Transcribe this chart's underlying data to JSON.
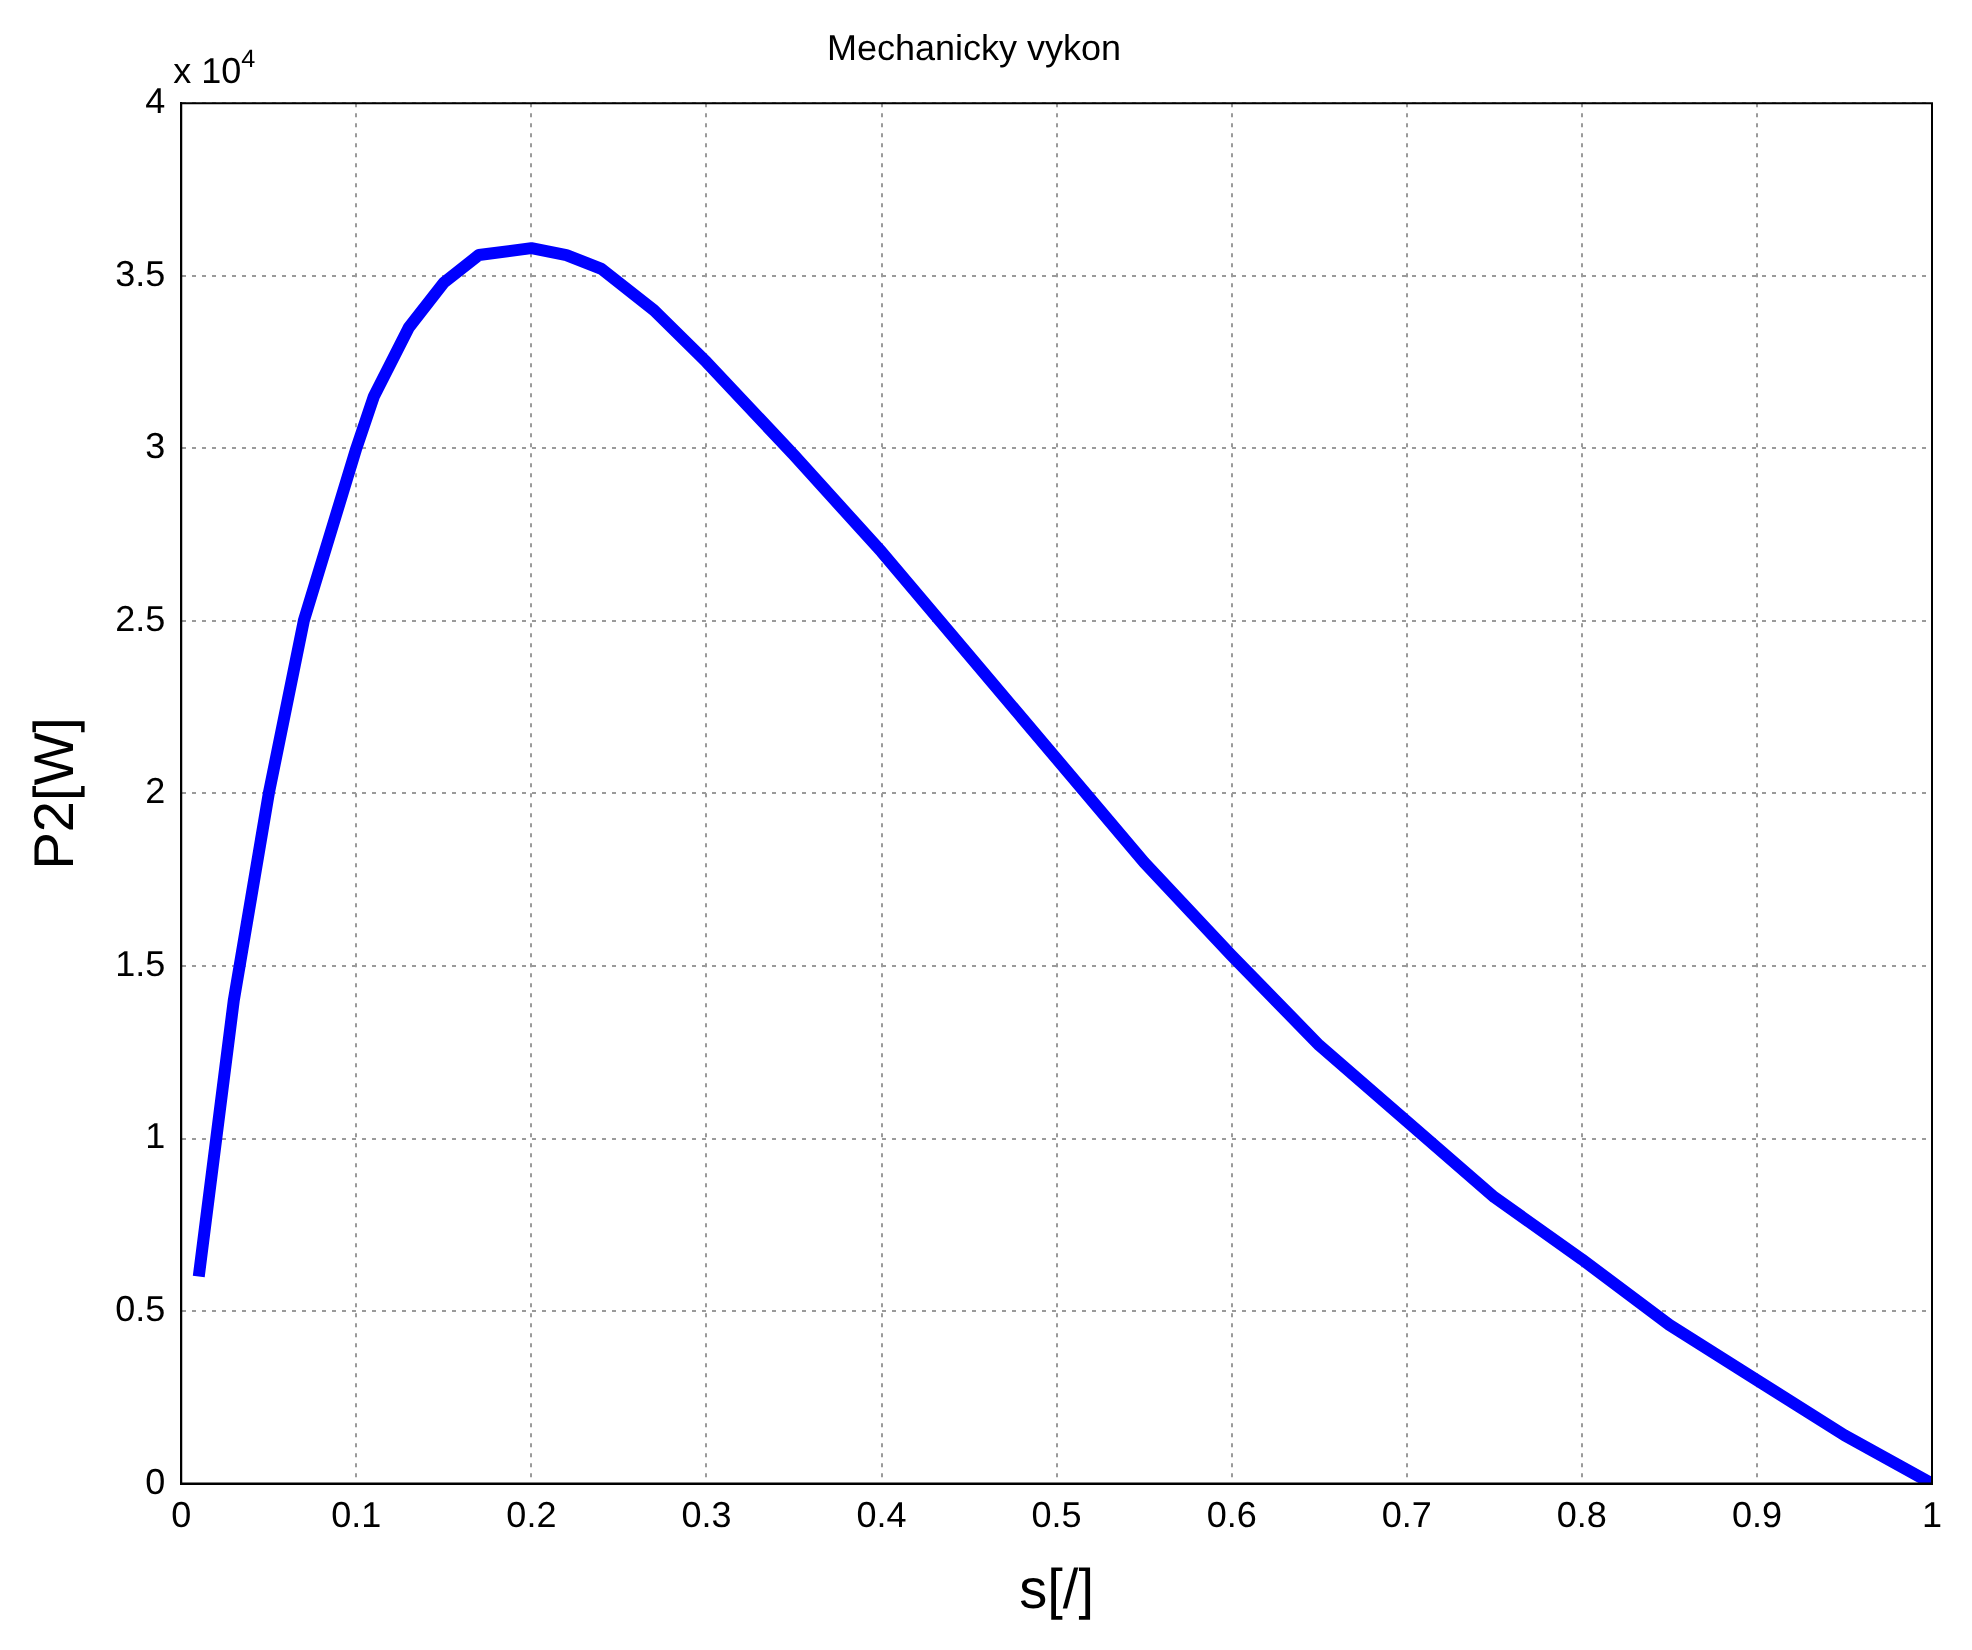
{
  "chart_data": {
    "type": "line",
    "title": "Mechanicky vykon",
    "xlabel": "s[/]",
    "ylabel": "P2[W]",
    "annotations": [
      "x 10$^{4}$"
    ],
    "x": [
      0.01,
      0.02,
      0.03,
      0.04,
      0.05,
      0.07,
      0.1,
      0.11,
      0.13,
      0.15,
      0.17,
      0.2,
      0.22,
      0.24,
      0.27,
      0.3,
      0.35,
      0.4,
      0.45,
      0.5,
      0.55,
      0.6,
      0.65,
      0.7,
      0.75,
      0.8,
      0.85,
      0.9,
      0.95,
      1.0
    ],
    "series": [
      {
        "color": "#0000ff",
        "values": [
          0.6,
          1.0,
          1.4,
          1.7,
          2.0,
          2.5,
          3.0,
          3.15,
          3.35,
          3.48,
          3.56,
          3.58,
          3.56,
          3.52,
          3.4,
          3.25,
          2.98,
          2.7,
          2.4,
          2.1,
          1.8,
          1.53,
          1.27,
          1.05,
          0.83,
          0.65,
          0.46,
          0.3,
          0.14,
          0.0
        ]
      }
    ],
    "xlim": [
      0,
      1
    ],
    "xticks": [
      0,
      0.1,
      0.2,
      0.3,
      0.4,
      0.5,
      0.6,
      0.7,
      0.8,
      0.9,
      1
    ],
    "ylim": [
      0,
      4
    ],
    "yticks": [
      0,
      0.5,
      1,
      1.5,
      2,
      2.5,
      3,
      3.5,
      4
    ],
    "grid": true,
    "legend": false,
    "marker": "none"
  }
}
